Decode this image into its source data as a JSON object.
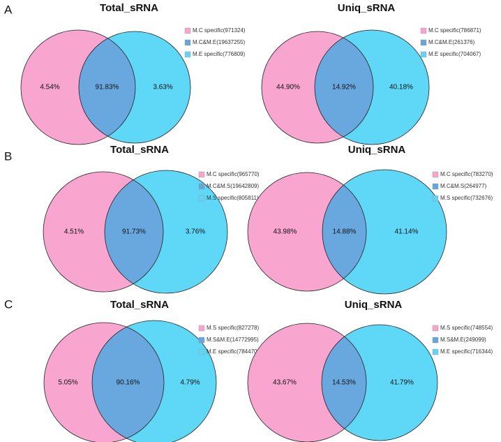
{
  "panels": [
    {
      "label": "A",
      "charts": [
        {
          "title": "Total_sRNA",
          "legend": [
            "M.C specific(971324)",
            "M.C&M.E(19637255)",
            "M.E specific(776809)"
          ],
          "regions": [
            "4.54%",
            "91.83%",
            "3.63%"
          ]
        },
        {
          "title": "Uniq_sRNA",
          "legend": [
            "M.C specific(786871)",
            "M.C&M.E(261376)",
            "M.E specific(704067)"
          ],
          "regions": [
            "44.90%",
            "14.92%",
            "40.18%"
          ]
        }
      ]
    },
    {
      "label": "B",
      "charts": [
        {
          "title": "Total_sRNA",
          "legend": [
            "M.C specific(965770)",
            "M.C&M.S(19642809)",
            "M.S specific(805811)"
          ],
          "regions": [
            "4.51%",
            "91.73%",
            "3.76%"
          ]
        },
        {
          "title": "Uniq_sRNA",
          "legend": [
            "M.C specific(783270)",
            "M.C&M.S(264977)",
            "M.S specific(732676)"
          ],
          "regions": [
            "43.98%",
            "14.88%",
            "41.14%"
          ]
        }
      ]
    },
    {
      "label": "C",
      "charts": [
        {
          "title": "Total_sRNA",
          "legend": [
            "M.S specific(827278)",
            "M.S&M.E(14772995)",
            "M.E specific(784470)"
          ],
          "regions": [
            "5.05%",
            "90.16%",
            "4.79%"
          ]
        },
        {
          "title": "Uniq_sRNA",
          "legend": [
            "M.S specific(748554)",
            "M.S&M.E(249099)",
            "M.E specific(716344)"
          ],
          "regions": [
            "43.67%",
            "14.53%",
            "41.79%"
          ]
        }
      ]
    }
  ]
}
